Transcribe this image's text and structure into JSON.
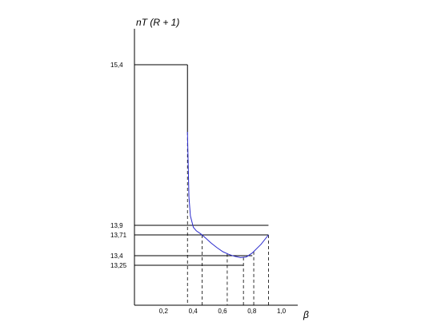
{
  "chart_data": {
    "type": "line",
    "xlabel": "β",
    "ylabel": "nT (R + 1)",
    "x_ticks": [
      {
        "value": 0.2,
        "label": "0,2"
      },
      {
        "value": 0.4,
        "label": "0,4"
      },
      {
        "value": 0.6,
        "label": "0,6"
      },
      {
        "value": 0.8,
        "label": "0,8"
      },
      {
        "value": 1.0,
        "label": "1,0"
      }
    ],
    "y_ticks": [
      {
        "value": 15.4,
        "label": "15,4"
      },
      {
        "value": 13.9,
        "label": "13,9"
      },
      {
        "value": 13.71,
        "label": "13,71"
      },
      {
        "value": 13.4,
        "label": "13,4"
      },
      {
        "value": 13.25,
        "label": "13,25"
      }
    ],
    "series": [
      {
        "color": "#2b2bcc",
        "x": [
          0.36,
          0.37,
          0.38,
          0.4,
          0.42,
          0.45,
          0.48,
          0.52,
          0.56,
          0.6,
          0.64,
          0.68,
          0.72,
          0.76,
          0.8,
          0.86,
          0.91
        ],
        "y": [
          14.4,
          14.05,
          13.95,
          13.86,
          13.79,
          13.73,
          13.67,
          13.59,
          13.52,
          13.46,
          13.42,
          13.39,
          13.37,
          13.38,
          13.44,
          13.57,
          13.71
        ]
      }
    ],
    "step_segment": {
      "from": [
        0.36,
        15.4
      ],
      "to": [
        0.36,
        14.4
      ],
      "color": "#000000"
    },
    "reference_lines": {
      "horizontal": [
        {
          "y": 15.4,
          "x_end": 0.36
        },
        {
          "y": 13.9,
          "x_end": 0.91
        },
        {
          "y": 13.71,
          "x_end": 0.91
        },
        {
          "y": 13.4,
          "x_end": 0.8
        },
        {
          "y": 13.25,
          "x_end": 0.74
        }
      ],
      "vertical_dashed": [
        0.36,
        0.46,
        0.63,
        0.74,
        0.81,
        0.91
      ]
    }
  }
}
